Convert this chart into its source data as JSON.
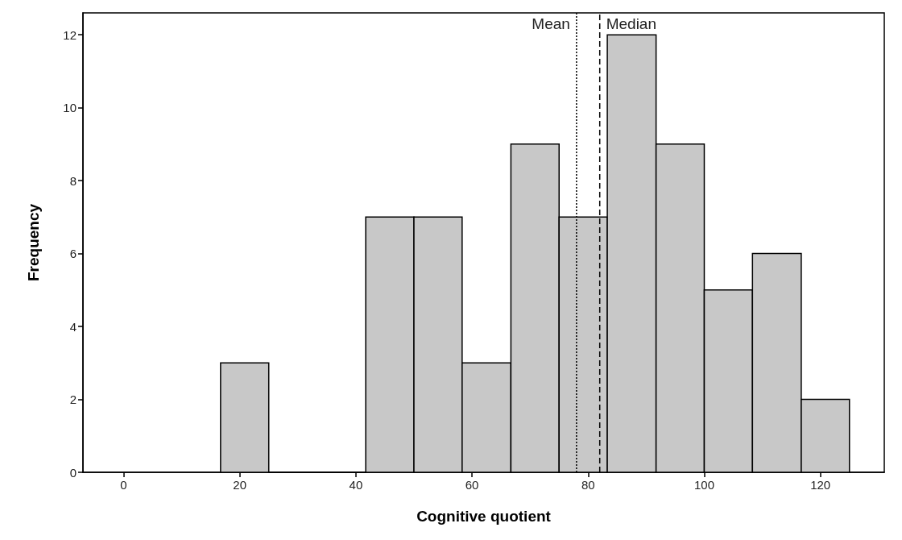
{
  "chart_data": {
    "type": "histogram",
    "xlabel": "Cognitive quotient",
    "ylabel": "Frequency",
    "bins": [
      16.7,
      25,
      41.7,
      50,
      58.3,
      66.7,
      75,
      83.3,
      91.7,
      100,
      108.3,
      116.7,
      125
    ],
    "values": [
      3,
      0,
      7,
      7,
      3,
      9,
      7,
      12,
      9,
      5,
      6,
      2
    ],
    "color": "#c8c8c8",
    "xlim": [
      -7,
      131
    ],
    "xticks": [
      0,
      20,
      40,
      60,
      80,
      100,
      120
    ],
    "ylim": [
      0,
      12.6
    ],
    "yticks": [
      0,
      2,
      4,
      6,
      8,
      10,
      12
    ],
    "grid": false,
    "ref_lines": [
      {
        "axis": "x",
        "value": 78,
        "label": "Mean",
        "line_style": "dotted",
        "color": "#000000"
      },
      {
        "axis": "x",
        "value": 82,
        "label": "Median",
        "line_style": "dashed",
        "color": "#000000"
      }
    ]
  }
}
